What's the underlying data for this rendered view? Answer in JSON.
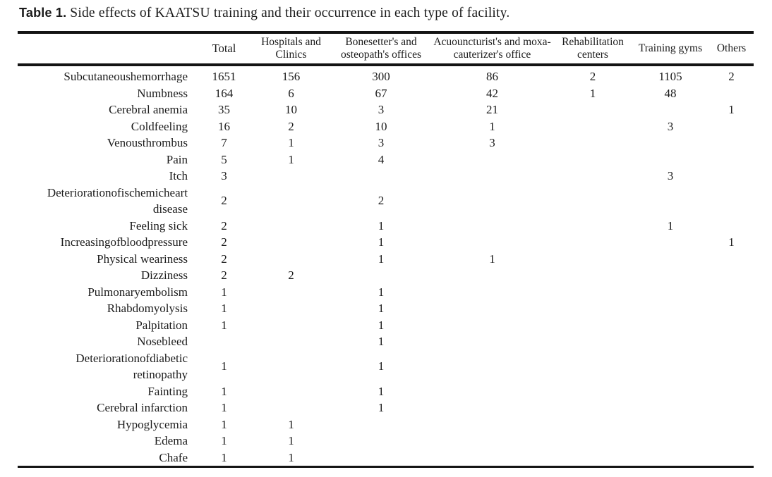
{
  "caption": {
    "number": "Table 1.",
    "text": "Side effects of KAATSU training and their occurrence in each type of facility."
  },
  "colors": {
    "background": "#ffffff",
    "text": "#1b1b1b",
    "rule": "#141414"
  },
  "table": {
    "columns": [
      "",
      "Total",
      "Hospitals and Clinics",
      "Bonesetter's and osteopath's offices",
      "Acuouncturist's and moxa-cauterizer's office",
      "Rehabilitation centers",
      "Training gyms",
      "Others"
    ],
    "rows": [
      {
        "label": "Subcutaneoushemorrhage",
        "values": [
          "1651",
          "156",
          "300",
          "86",
          "2",
          "1105",
          "2"
        ]
      },
      {
        "label": "Numbness",
        "values": [
          "164",
          "6",
          "67",
          "42",
          "1",
          "48",
          ""
        ]
      },
      {
        "label": "Cerebral anemia",
        "values": [
          "35",
          "10",
          "3",
          "21",
          "",
          "",
          "1"
        ]
      },
      {
        "label": "Coldfeeling",
        "values": [
          "16",
          "2",
          "10",
          "1",
          "",
          "3",
          ""
        ]
      },
      {
        "label": "Venousthrombus",
        "values": [
          "7",
          "1",
          "3",
          "3",
          "",
          "",
          ""
        ]
      },
      {
        "label": "Pain",
        "values": [
          "5",
          "1",
          "4",
          "",
          "",
          "",
          ""
        ]
      },
      {
        "label": "Itch",
        "values": [
          "3",
          "",
          "",
          "",
          "",
          "3",
          ""
        ]
      },
      {
        "label": "Deteriorationofischemicheart disease",
        "values": [
          "2",
          "",
          "2",
          "",
          "",
          "",
          ""
        ]
      },
      {
        "label": "Feeling sick",
        "values": [
          "2",
          "",
          "1",
          "",
          "",
          "1",
          ""
        ]
      },
      {
        "label": "Increasingofbloodpressure",
        "values": [
          "2",
          "",
          "1",
          "",
          "",
          "",
          "1"
        ]
      },
      {
        "label": "Physical weariness",
        "values": [
          "2",
          "",
          "1",
          "1",
          "",
          "",
          ""
        ]
      },
      {
        "label": "Dizziness",
        "values": [
          "2",
          "2",
          "",
          "",
          "",
          "",
          ""
        ]
      },
      {
        "label": "Pulmonaryembolism",
        "values": [
          "1",
          "",
          "1",
          "",
          "",
          "",
          ""
        ]
      },
      {
        "label": "Rhabdomyolysis",
        "values": [
          "1",
          "",
          "1",
          "",
          "",
          "",
          ""
        ]
      },
      {
        "label": "Palpitation",
        "values": [
          "1",
          "",
          "1",
          "",
          "",
          "",
          ""
        ]
      },
      {
        "label": "Nosebleed",
        "values": [
          "",
          "",
          "1",
          "",
          "",
          "",
          ""
        ]
      },
      {
        "label": "Deteriorationofdiabetic retinopathy",
        "values": [
          "1",
          "",
          "1",
          "",
          "",
          "",
          ""
        ]
      },
      {
        "label": "Fainting",
        "values": [
          "1",
          "",
          "1",
          "",
          "",
          "",
          ""
        ]
      },
      {
        "label": "Cerebral infarction",
        "values": [
          "1",
          "",
          "1",
          "",
          "",
          "",
          ""
        ]
      },
      {
        "label": "Hypoglycemia",
        "values": [
          "1",
          "1",
          "",
          "",
          "",
          "",
          ""
        ]
      },
      {
        "label": "Edema",
        "values": [
          "1",
          "1",
          "",
          "",
          "",
          "",
          ""
        ]
      },
      {
        "label": "Chafe",
        "values": [
          "1",
          "1",
          "",
          "",
          "",
          "",
          ""
        ]
      }
    ]
  }
}
